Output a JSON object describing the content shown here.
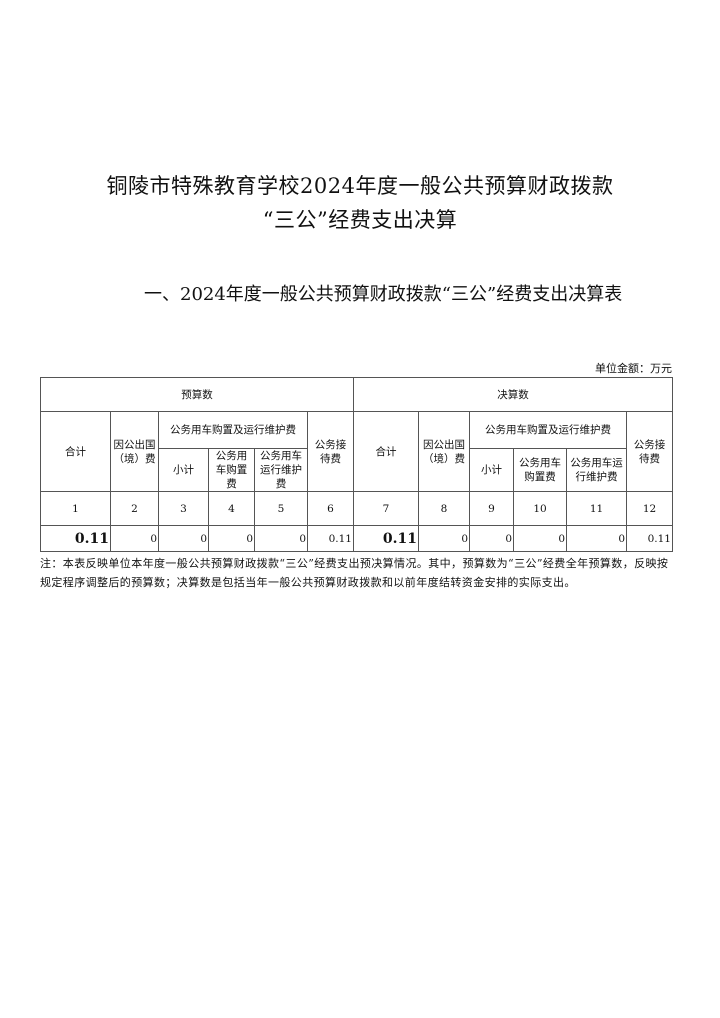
{
  "title_line1": "铜陵市特殊教育学校2024年度一般公共预算财政拨款",
  "title_line2": "“三公”经费支出决算",
  "section_title": "一、2024年度一般公共预算财政拨款“三公”经费支出决算表",
  "unit": "单位金额：万元",
  "table": {
    "group_budget": "预算数",
    "group_final": "决算数",
    "col_total": "合计",
    "col_abroad": "因公出国（境）费",
    "col_vehicle": "公务用车购置及运行维护费",
    "col_subtotal": "小计",
    "col_purchase": "公务用车购置费",
    "col_operation_budget": "公务用车运行维护费",
    "col_operation_final": "公务用车运行维护费",
    "col_reception": "公务接待费",
    "col_numbers": [
      "1",
      "2",
      "3",
      "4",
      "5",
      "6",
      "7",
      "8",
      "9",
      "10",
      "11",
      "12"
    ],
    "values": [
      "0.11",
      "0",
      "0",
      "0",
      "0",
      "0.11",
      "0.11",
      "0",
      "0",
      "0",
      "0",
      "0.11"
    ]
  },
  "note": "注：本表反映单位本年度一般公共预算财政拨款“三公”经费支出预决算情况。其中，预算数为“三公”经费全年预算数，反映按规定程序调整后的预算数；决算数是包括当年一般公共预算财政拨款和以前年度结转资金安排的实际支出。"
}
